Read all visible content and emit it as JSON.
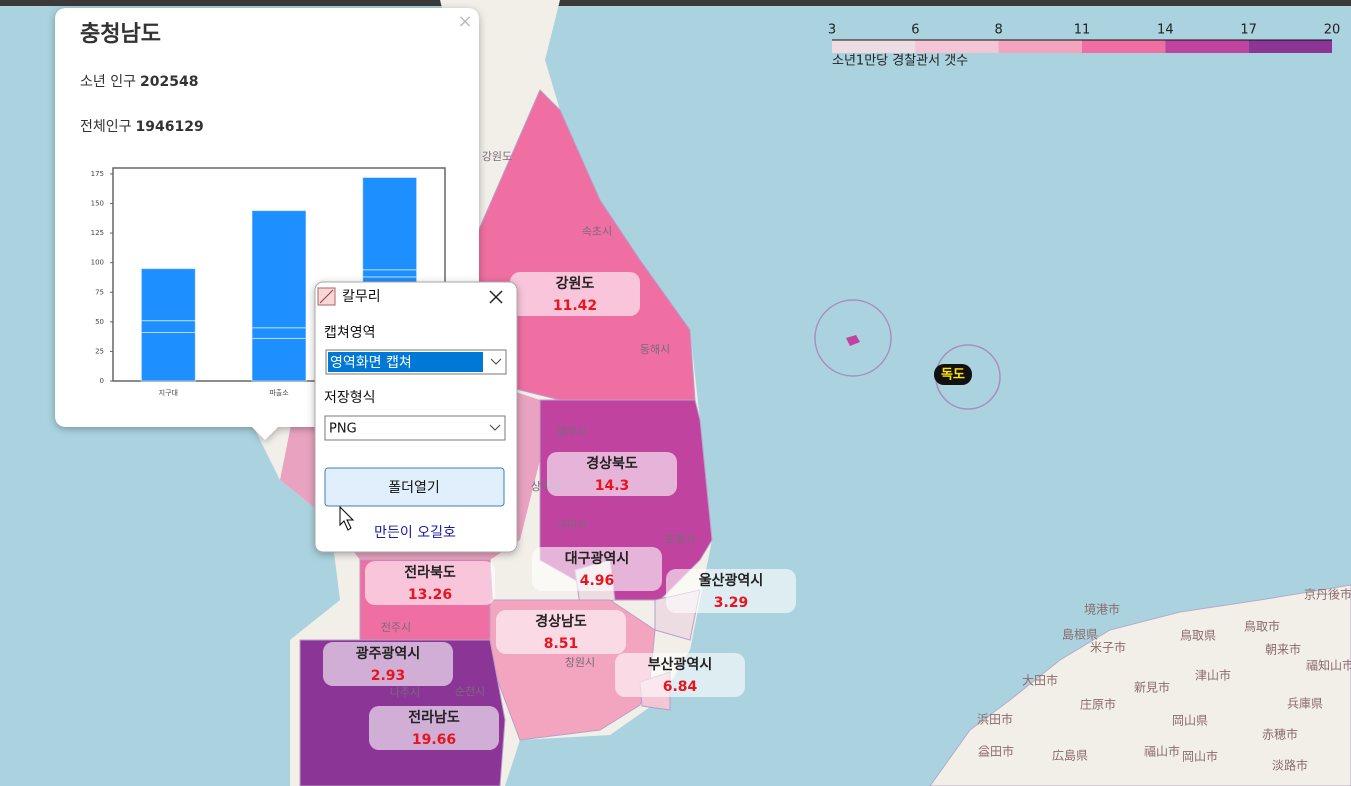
{
  "legend": {
    "title": "소년1만당 경찰관서 갯수",
    "ticks": [
      3,
      6,
      8,
      11,
      14,
      17,
      20
    ],
    "colors": [
      "#eddde3",
      "#f3c5d5",
      "#f3a5bf",
      "#ef6fa3",
      "#c043a0",
      "#8b3597"
    ]
  },
  "regions": [
    {
      "name": "강원도",
      "value": 11.42
    },
    {
      "name": "경상북도",
      "value": 14.3
    },
    {
      "name": "대구광역시",
      "value": 4.96
    },
    {
      "name": "울산광역시",
      "value": 3.29
    },
    {
      "name": "전라북도",
      "value": 13.26
    },
    {
      "name": "경상남도",
      "value": 8.51
    },
    {
      "name": "광주광역시",
      "value": 2.93
    },
    {
      "name": "부산광역시",
      "value": 6.84
    },
    {
      "name": "전라남도",
      "value": 19.66
    }
  ],
  "dokdo": "독도",
  "map_labels": [
    "강원도",
    "속초시",
    "동해시",
    "영주시",
    "상주시",
    "구미시",
    "포항시",
    "창원시",
    "순천시",
    "나주시",
    "전주시",
    "境港市",
    "島根県",
    "鳥取県",
    "米子市",
    "鳥取市",
    "朝来市",
    "福知山市",
    "京丹後市",
    "大田市",
    "新見市",
    "津山市",
    "浜田市",
    "庄原市",
    "兵庫県",
    "岡山県",
    "赤穂市",
    "益田市",
    "広島県",
    "福山市",
    "岡山市",
    "淡路市"
  ],
  "popup": {
    "title": "충청남도",
    "close": "×",
    "stats": [
      {
        "label": "소년 인구",
        "value": 202548
      },
      {
        "label": "전체인구",
        "value": 1946129
      }
    ]
  },
  "chart_data": {
    "type": "bar",
    "stacked": true,
    "categories": [
      "지구대",
      "파출소",
      null
    ],
    "series": [
      {
        "color": "#1e8fff",
        "values": [
          41,
          36,
          88
        ]
      },
      {
        "color": "#1e8fff",
        "values": [
          10,
          9,
          6
        ]
      },
      {
        "color": "#1e8fff",
        "values": [
          44,
          99,
          78
        ]
      }
    ],
    "ylim": [
      0,
      180
    ],
    "yticks": [
      0,
      25,
      50,
      75,
      100,
      125,
      150,
      175
    ]
  },
  "dialog": {
    "title": "칼무리",
    "fields": [
      {
        "label": "캡쳐영역",
        "value": "영역화면 캡쳐"
      },
      {
        "label": "저장형식",
        "value": "PNG"
      }
    ],
    "button": "폴더열기",
    "link": "만든이 오길호"
  }
}
